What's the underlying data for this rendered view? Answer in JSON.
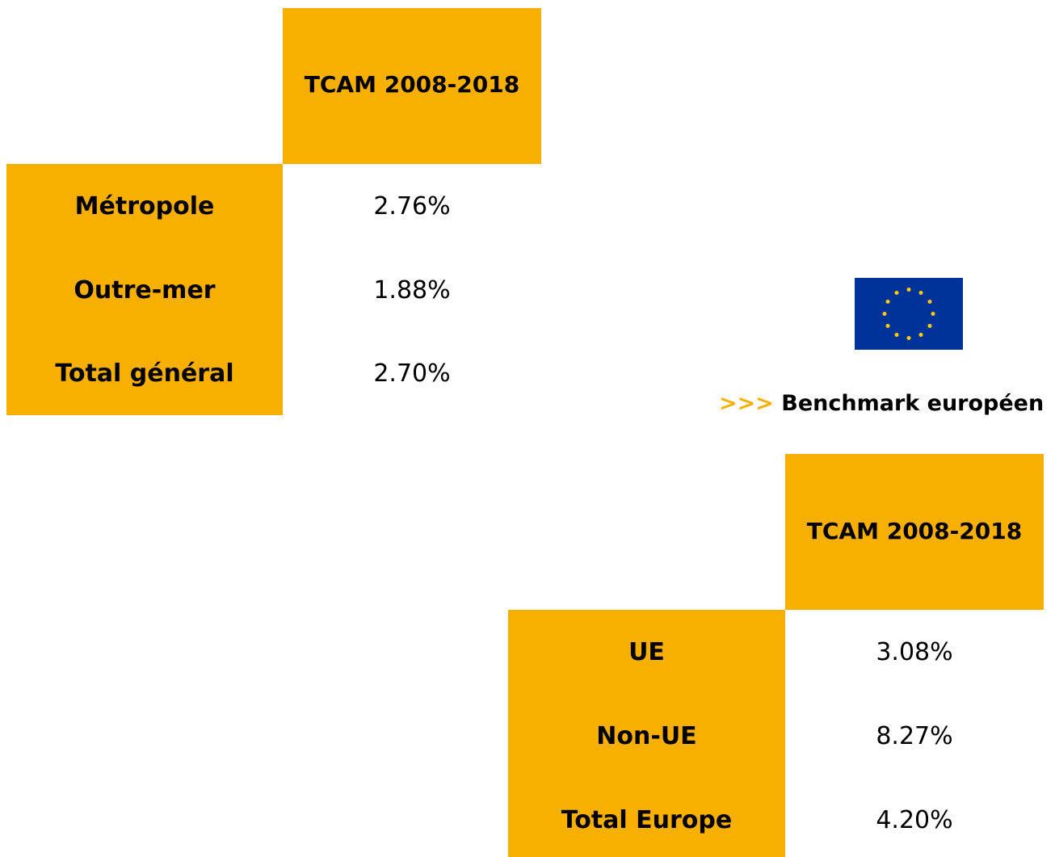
{
  "table1": {
    "header": "TCAM 2008-2018",
    "rows": [
      [
        "Métropole",
        "2.76%"
      ],
      [
        "Outre-mer",
        "1.88%"
      ],
      [
        "Total général",
        "2.70%"
      ]
    ]
  },
  "benchmark": {
    "arrow": ">>>",
    "title": "Benchmark européen"
  },
  "table2": {
    "header": "TCAM 2008-2018",
    "rows": [
      [
        "UE",
        "3.08%"
      ],
      [
        "Non-UE",
        "8.27%"
      ],
      [
        "Total Europe",
        "4.20%"
      ]
    ]
  }
}
